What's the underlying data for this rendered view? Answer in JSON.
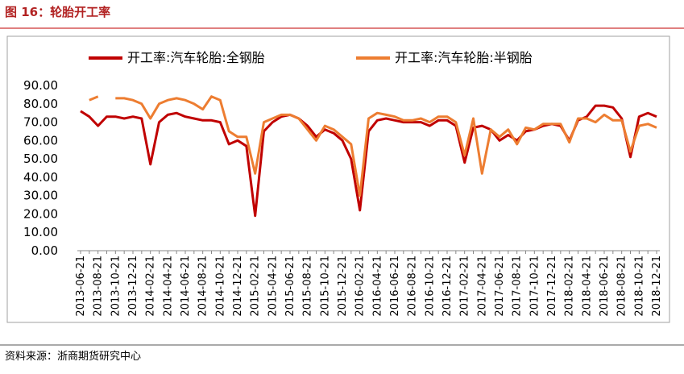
{
  "header": {
    "title": "图 16：轮胎开工率"
  },
  "chart_data": {
    "type": "line",
    "categories": [
      "2013-06-21",
      null,
      "2013-08-21",
      null,
      "2013-10-21",
      null,
      "2013-12-21",
      null,
      "2014-02-21",
      null,
      "2014-04-21",
      null,
      "2014-06-21",
      null,
      "2014-08-21",
      null,
      "2014-10-21",
      null,
      "2014-12-21",
      null,
      "2015-02-21",
      null,
      "2015-04-21",
      null,
      "2015-06-21",
      null,
      "2015-08-21",
      null,
      "2015-10-21",
      null,
      "2015-12-21",
      null,
      "2016-02-21",
      null,
      "2016-04-21",
      null,
      "2016-06-21",
      null,
      "2016-08-21",
      null,
      "2016-10-21",
      null,
      "2016-12-21",
      null,
      "2017-02-21",
      null,
      "2017-04-21",
      null,
      "2017-06-21",
      null,
      "2017-08-21",
      null,
      "2017-10-21",
      null,
      "2017-12-21",
      null,
      "2018-02-21",
      null,
      "2018-04-21",
      null,
      "2018-06-21",
      null,
      "2018-08-21",
      null,
      "2018-10-21",
      null,
      "2018-12-21"
    ],
    "series": [
      {
        "name": "开工率:汽车轮胎:全钢胎",
        "color": "#C00000",
        "values": [
          76,
          73,
          68,
          73,
          73,
          72,
          73,
          72,
          47,
          70,
          74,
          75,
          73,
          72,
          71,
          71,
          70,
          58,
          60,
          57,
          19,
          65,
          70,
          73,
          74,
          72,
          68,
          62,
          66,
          64,
          60,
          50,
          22,
          65,
          71,
          72,
          71,
          70,
          70,
          70,
          68,
          71,
          71,
          68,
          48,
          67,
          68,
          66,
          60,
          63,
          60,
          65,
          66,
          68,
          69,
          68,
          60,
          71,
          73,
          79,
          79,
          78,
          72,
          51,
          73,
          75,
          73
        ]
      },
      {
        "name": "开工率:汽车轮胎:半钢胎",
        "color": "#ED7D31",
        "values": [
          null,
          82,
          84,
          null,
          83,
          83,
          82,
          80,
          72,
          80,
          82,
          83,
          82,
          80,
          77,
          84,
          82,
          65,
          62,
          62,
          42,
          70,
          72,
          74,
          74,
          72,
          66,
          60,
          68,
          66,
          62,
          58,
          30,
          72,
          75,
          74,
          73,
          71,
          71,
          72,
          70,
          73,
          73,
          70,
          52,
          72,
          42,
          66,
          62,
          66,
          58,
          67,
          66,
          69,
          69,
          69,
          59,
          72,
          72,
          70,
          74,
          71,
          71,
          54,
          68,
          69,
          67
        ]
      }
    ],
    "ylim": [
      0,
      90
    ],
    "yticks": [
      {
        "value": 0,
        "label": "0.00"
      },
      {
        "value": 10,
        "label": "10.00"
      },
      {
        "value": 20,
        "label": "20.00"
      },
      {
        "value": 30,
        "label": "30.00"
      },
      {
        "value": 40,
        "label": "40.00"
      },
      {
        "value": 50,
        "label": "50.00"
      },
      {
        "value": 60,
        "label": "60.00"
      },
      {
        "value": 70,
        "label": "70.00"
      },
      {
        "value": 80,
        "label": "80.00"
      },
      {
        "value": 90,
        "label": "90.00"
      }
    ],
    "legend": "top"
  },
  "footer": {
    "source": "资料来源：浙商期货研究中心"
  }
}
